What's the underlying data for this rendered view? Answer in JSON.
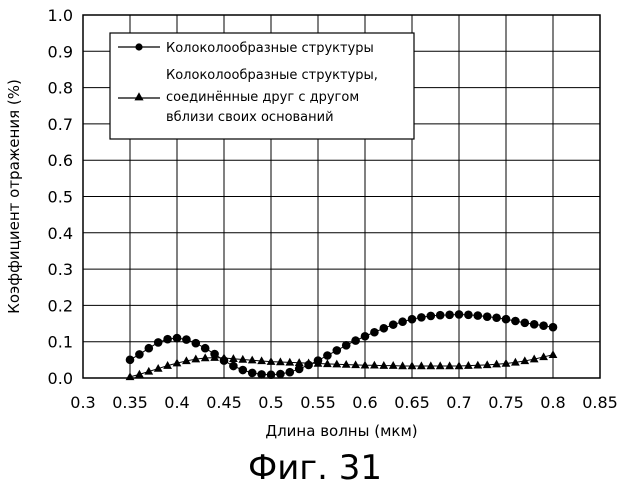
{
  "chart_data": {
    "type": "line",
    "xlabel": "Длина волны (мкм)",
    "ylabel": "Коэффициент отражения (%)",
    "xlim": [
      0.3,
      0.85
    ],
    "ylim": [
      0.0,
      1.0
    ],
    "xticks": [
      "0.3",
      "0.35",
      "0.4",
      "0.45",
      "0.5",
      "0.55",
      "0.6",
      "0.65",
      "0.7",
      "0.75",
      "0.8",
      "0.85"
    ],
    "yticks": [
      "0.0",
      "0.1",
      "0.2",
      "0.3",
      "0.4",
      "0.5",
      "0.6",
      "0.7",
      "0.8",
      "0.9",
      "1.0"
    ],
    "grid": true,
    "legend_position": "top-left",
    "x": [
      0.35,
      0.36,
      0.37,
      0.38,
      0.39,
      0.4,
      0.41,
      0.42,
      0.43,
      0.44,
      0.45,
      0.46,
      0.47,
      0.48,
      0.49,
      0.5,
      0.51,
      0.52,
      0.53,
      0.54,
      0.55,
      0.56,
      0.57,
      0.58,
      0.59,
      0.6,
      0.61,
      0.62,
      0.63,
      0.64,
      0.65,
      0.66,
      0.67,
      0.68,
      0.69,
      0.7,
      0.71,
      0.72,
      0.73,
      0.74,
      0.75,
      0.76,
      0.77,
      0.78,
      0.79,
      0.8
    ],
    "series": [
      {
        "name": "Колоколообразные структуры",
        "marker": "circle",
        "values": [
          0.05,
          0.065,
          0.082,
          0.098,
          0.107,
          0.11,
          0.106,
          0.096,
          0.082,
          0.066,
          0.048,
          0.033,
          0.022,
          0.014,
          0.01,
          0.009,
          0.011,
          0.016,
          0.025,
          0.036,
          0.048,
          0.062,
          0.076,
          0.09,
          0.103,
          0.115,
          0.126,
          0.137,
          0.147,
          0.155,
          0.162,
          0.167,
          0.171,
          0.173,
          0.174,
          0.175,
          0.174,
          0.172,
          0.169,
          0.166,
          0.162,
          0.157,
          0.152,
          0.148,
          0.144,
          0.14
        ]
      },
      {
        "name": "Колоколообразные структуры,\nсоединённые друг с другом\nвблизи своих оснований",
        "marker": "triangle",
        "values": [
          0.003,
          0.01,
          0.018,
          0.026,
          0.034,
          0.041,
          0.047,
          0.052,
          0.055,
          0.056,
          0.055,
          0.053,
          0.051,
          0.049,
          0.047,
          0.045,
          0.044,
          0.043,
          0.042,
          0.041,
          0.04,
          0.039,
          0.038,
          0.037,
          0.036,
          0.035,
          0.035,
          0.034,
          0.034,
          0.033,
          0.033,
          0.033,
          0.033,
          0.033,
          0.033,
          0.033,
          0.034,
          0.035,
          0.036,
          0.038,
          0.04,
          0.043,
          0.047,
          0.052,
          0.058,
          0.064
        ]
      }
    ],
    "legend": [
      {
        "label": "Колоколообразные структуры"
      },
      {
        "label_lines": [
          "Колоколообразные структуры,",
          "соединённые друг с другом",
          "вблизи своих оснований"
        ]
      }
    ]
  },
  "caption": "Фиг. 31"
}
